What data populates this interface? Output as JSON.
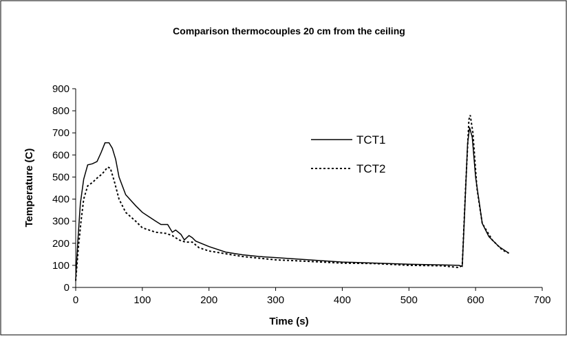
{
  "chart_data": {
    "type": "line",
    "title": "Comparison thermocouples 20 cm from the ceiling",
    "x_label": "Time (s)",
    "y_label": "Temperature (C)",
    "xlim": [
      0,
      700
    ],
    "xticks": [
      0,
      100,
      200,
      300,
      400,
      500,
      600,
      700
    ],
    "ylim": [
      0,
      900
    ],
    "yticks": [
      0,
      100,
      200,
      300,
      400,
      500,
      600,
      700,
      800,
      900
    ],
    "grid": false,
    "legend": "inside-right",
    "series": [
      {
        "name": "TCT1",
        "color": "#000000",
        "line_style": "solid",
        "x": [
          0,
          3,
          7,
          12,
          18,
          25,
          32,
          38,
          44,
          50,
          55,
          60,
          65,
          75,
          90,
          100,
          110,
          120,
          128,
          138,
          145,
          150,
          158,
          163,
          170,
          175,
          180,
          200,
          225,
          250,
          275,
          300,
          350,
          400,
          450,
          500,
          550,
          575,
          580,
          583,
          588,
          591,
          595,
          600,
          610,
          620,
          635,
          650
        ],
        "values": [
          40,
          200,
          380,
          490,
          555,
          560,
          570,
          610,
          655,
          655,
          630,
          580,
          500,
          420,
          370,
          340,
          320,
          300,
          285,
          285,
          250,
          260,
          240,
          215,
          235,
          225,
          210,
          185,
          160,
          148,
          140,
          135,
          125,
          115,
          110,
          105,
          102,
          100,
          95,
          300,
          650,
          725,
          680,
          500,
          290,
          230,
          185,
          155
        ]
      },
      {
        "name": "TCT2",
        "color": "#000000",
        "line_style": "dashed",
        "x": [
          0,
          4,
          8,
          12,
          18,
          25,
          32,
          40,
          48,
          52,
          58,
          65,
          75,
          90,
          100,
          120,
          135,
          145,
          155,
          165,
          175,
          185,
          200,
          250,
          300,
          350,
          400,
          450,
          500,
          550,
          575,
          580,
          585,
          590,
          592,
          596,
          602,
          610,
          625,
          640,
          650
        ],
        "values": [
          30,
          180,
          300,
          400,
          460,
          475,
          495,
          515,
          545,
          540,
          480,
          400,
          340,
          300,
          270,
          250,
          245,
          235,
          215,
          205,
          205,
          180,
          165,
          140,
          125,
          118,
          110,
          108,
          100,
          98,
          90,
          100,
          450,
          760,
          780,
          700,
          450,
          290,
          215,
          170,
          155
        ]
      }
    ]
  }
}
